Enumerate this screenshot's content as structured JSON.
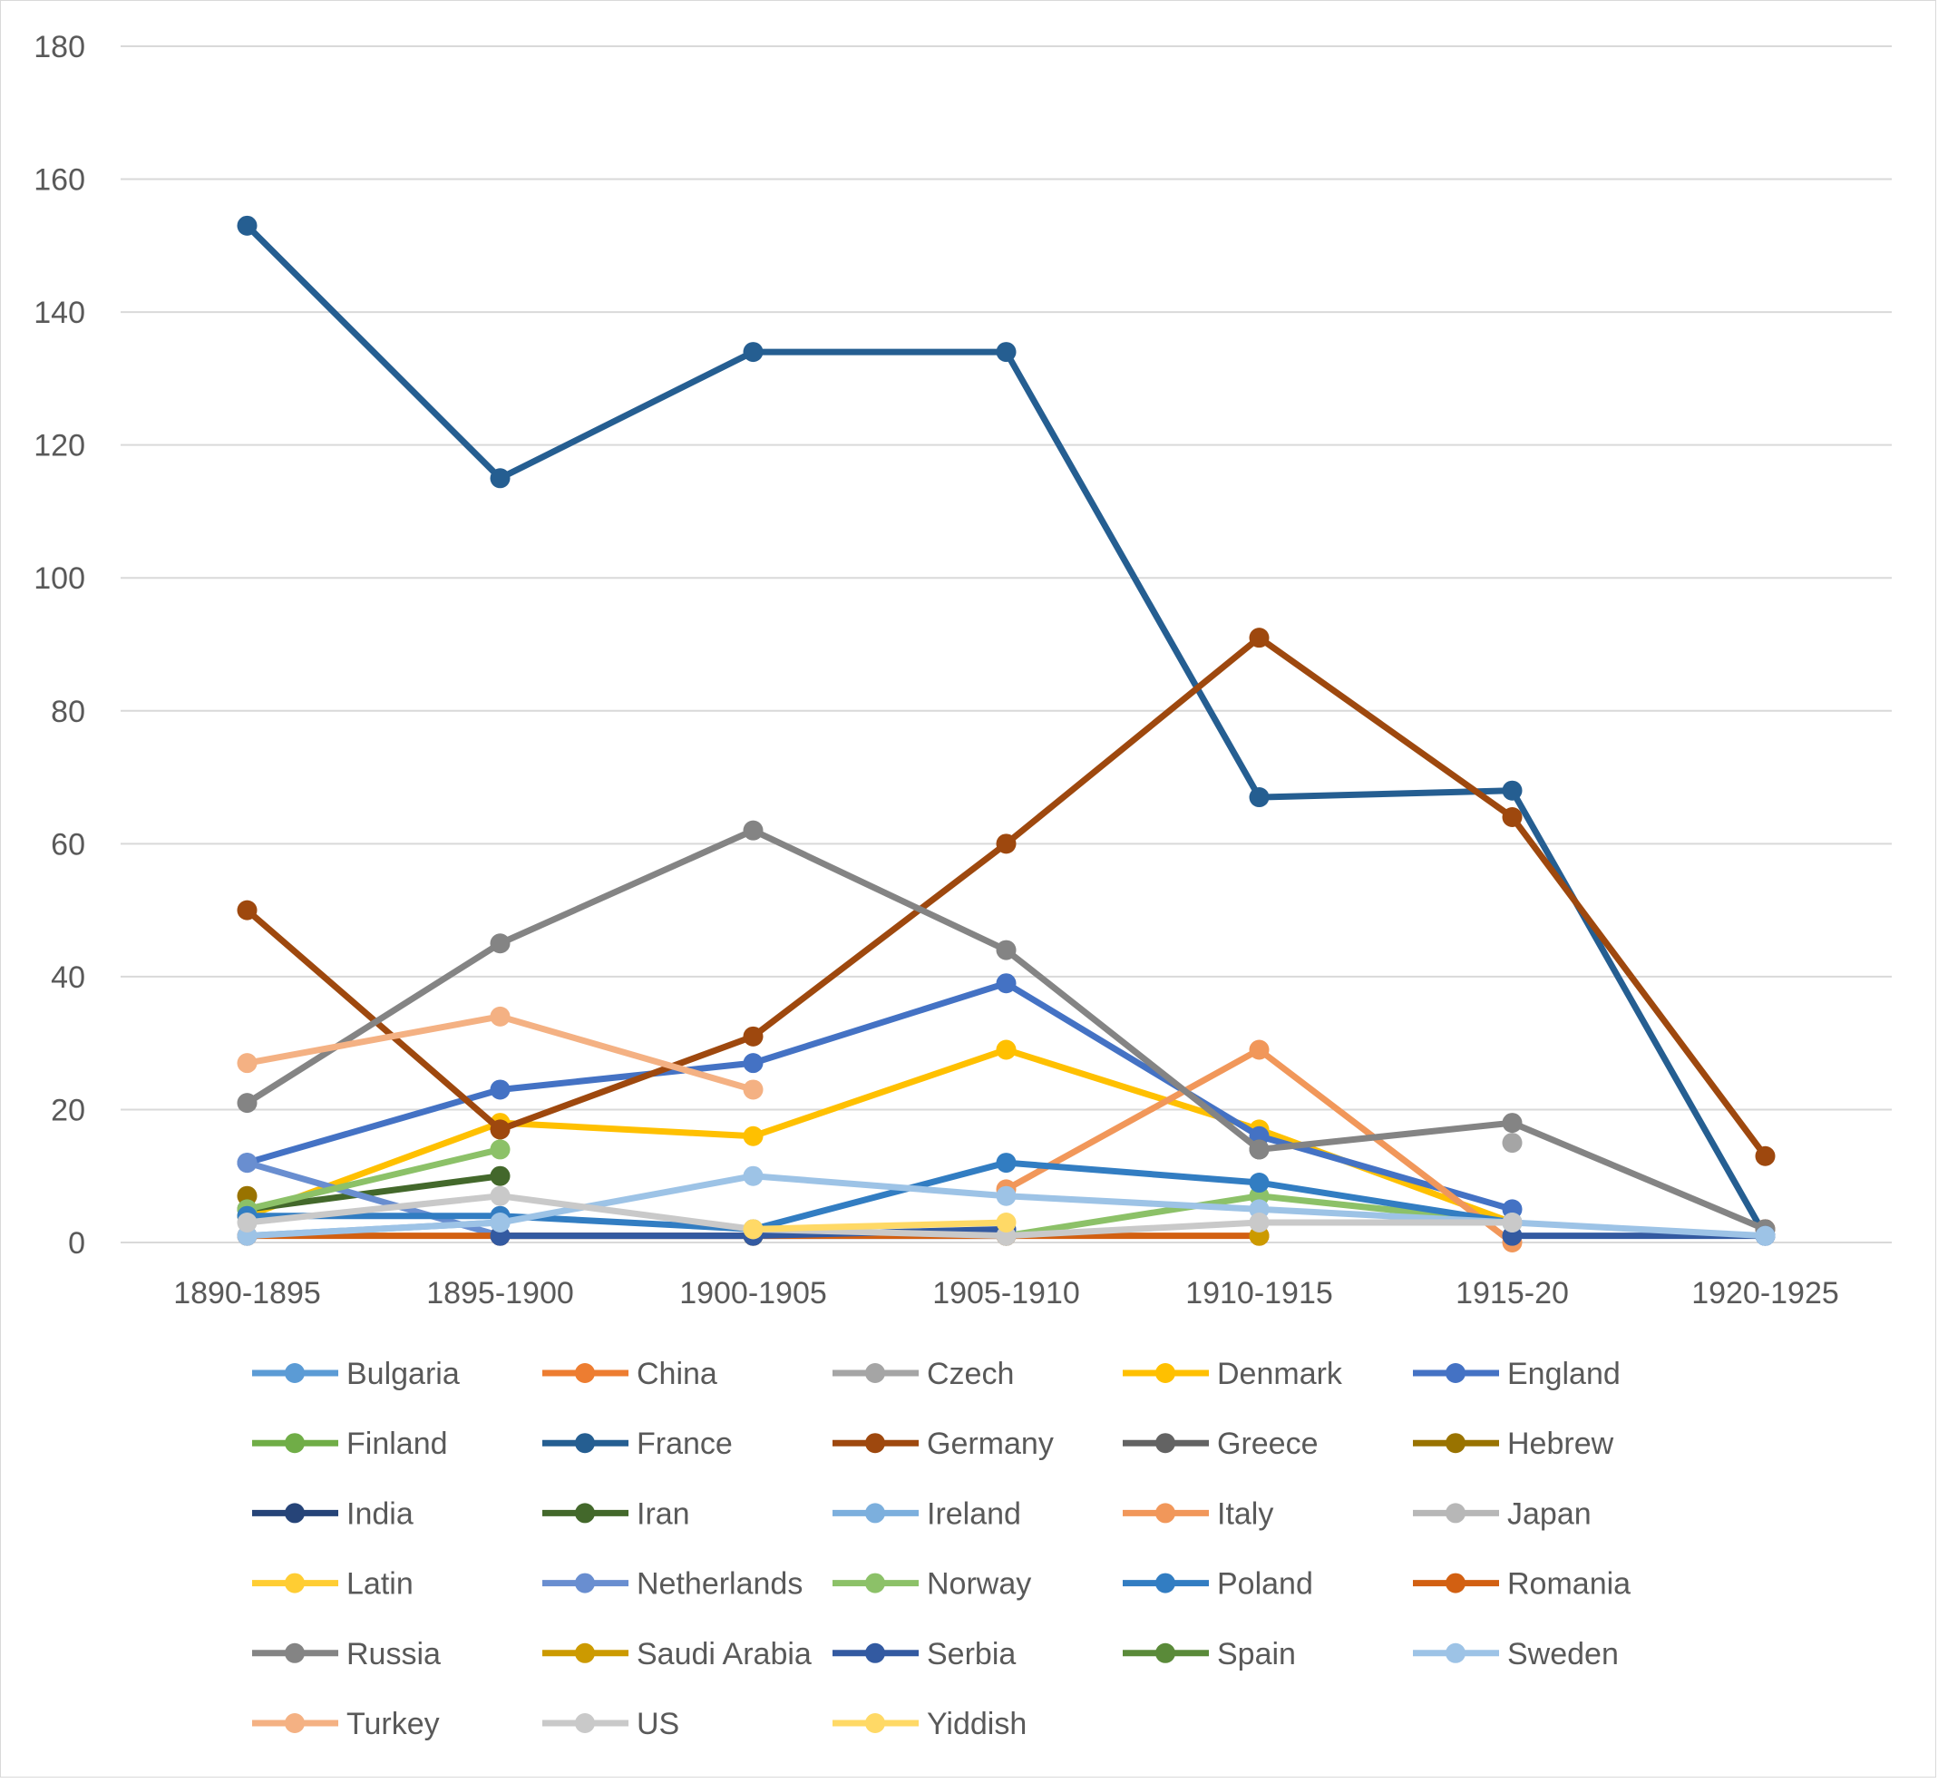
{
  "chart_data": {
    "type": "line",
    "title": "",
    "xlabel": "",
    "ylabel": "",
    "ylim": [
      0,
      180
    ],
    "ytick_step": 20,
    "yticks": [
      "0",
      "20",
      "40",
      "60",
      "80",
      "100",
      "120",
      "140",
      "160",
      "180"
    ],
    "grid": true,
    "legend_position": "bottom",
    "categories": [
      "1890-1895",
      "1895-1900",
      "1900-1905",
      "1905-1910",
      "1910-1915",
      "1915-20",
      "1920-1925"
    ],
    "series": [
      {
        "name": "Bulgaria",
        "color": "#5b9bd5",
        "values": [
          null,
          null,
          null,
          null,
          null,
          null,
          null
        ]
      },
      {
        "name": "China",
        "color": "#ed7d31",
        "values": [
          null,
          null,
          null,
          null,
          null,
          null,
          null
        ]
      },
      {
        "name": "Czech",
        "color": "#a5a5a5",
        "values": [
          null,
          null,
          null,
          null,
          null,
          15,
          null
        ]
      },
      {
        "name": "Denmark",
        "color": "#ffc000",
        "values": [
          4,
          18,
          16,
          29,
          17,
          3,
          null
        ]
      },
      {
        "name": "England",
        "color": "#4472c4",
        "values": [
          12,
          23,
          27,
          39,
          16,
          5,
          null
        ]
      },
      {
        "name": "Finland",
        "color": "#70ad47",
        "values": [
          null,
          null,
          null,
          null,
          null,
          null,
          null
        ]
      },
      {
        "name": "France",
        "color": "#255e91",
        "values": [
          153,
          115,
          134,
          134,
          67,
          68,
          1
        ]
      },
      {
        "name": "Germany",
        "color": "#9e480e",
        "values": [
          50,
          17,
          31,
          60,
          91,
          64,
          13
        ]
      },
      {
        "name": "Greece",
        "color": "#636363",
        "values": [
          null,
          null,
          null,
          null,
          14,
          null,
          null
        ]
      },
      {
        "name": "Hebrew",
        "color": "#997300",
        "values": [
          7,
          null,
          null,
          null,
          null,
          null,
          null
        ]
      },
      {
        "name": "India",
        "color": "#264478",
        "values": [
          null,
          null,
          null,
          null,
          null,
          null,
          null
        ]
      },
      {
        "name": "Iran",
        "color": "#43682b",
        "values": [
          5,
          10,
          null,
          null,
          null,
          null,
          null
        ]
      },
      {
        "name": "Ireland",
        "color": "#7cafdd",
        "values": [
          1,
          3,
          null,
          null,
          null,
          null,
          null
        ]
      },
      {
        "name": "Italy",
        "color": "#f1975a",
        "values": [
          null,
          null,
          null,
          8,
          29,
          0,
          null
        ]
      },
      {
        "name": "Japan",
        "color": "#b7b7b7",
        "values": [
          null,
          null,
          null,
          null,
          null,
          null,
          null
        ]
      },
      {
        "name": "Latin",
        "color": "#ffcd33",
        "values": [
          null,
          null,
          null,
          null,
          null,
          null,
          null
        ]
      },
      {
        "name": "Netherlands",
        "color": "#698ed0",
        "values": [
          12,
          1,
          1,
          1,
          null,
          null,
          null
        ]
      },
      {
        "name": "Norway",
        "color": "#8cc168",
        "values": [
          5,
          14,
          null,
          1,
          7,
          3,
          null
        ]
      },
      {
        "name": "Poland",
        "color": "#327dc2",
        "values": [
          4,
          4,
          2,
          12,
          9,
          3,
          null
        ]
      },
      {
        "name": "Romania",
        "color": "#d26012",
        "values": [
          1,
          1,
          1,
          1,
          1,
          null,
          2
        ]
      },
      {
        "name": "Russia",
        "color": "#848484",
        "values": [
          21,
          45,
          62,
          44,
          14,
          18,
          2
        ]
      },
      {
        "name": "Saudi Arabia",
        "color": "#cc9a00",
        "values": [
          null,
          null,
          1,
          null,
          1,
          null,
          null
        ]
      },
      {
        "name": "Serbia",
        "color": "#335aa1",
        "values": [
          null,
          1,
          1,
          2,
          null,
          1,
          1
        ]
      },
      {
        "name": "Spain",
        "color": "#5a8a39",
        "values": [
          null,
          null,
          null,
          null,
          null,
          null,
          null
        ]
      },
      {
        "name": "Sweden",
        "color": "#9dc3e6",
        "values": [
          1,
          3,
          10,
          7,
          5,
          3,
          1
        ]
      },
      {
        "name": "Turkey",
        "color": "#f4b183",
        "values": [
          27,
          34,
          23,
          null,
          null,
          null,
          null
        ]
      },
      {
        "name": "US",
        "color": "#c9c9c9",
        "values": [
          3,
          7,
          2,
          1,
          3,
          3,
          null
        ]
      },
      {
        "name": "Yiddish",
        "color": "#ffd966",
        "values": [
          null,
          null,
          2,
          3,
          null,
          null,
          null
        ]
      }
    ]
  }
}
